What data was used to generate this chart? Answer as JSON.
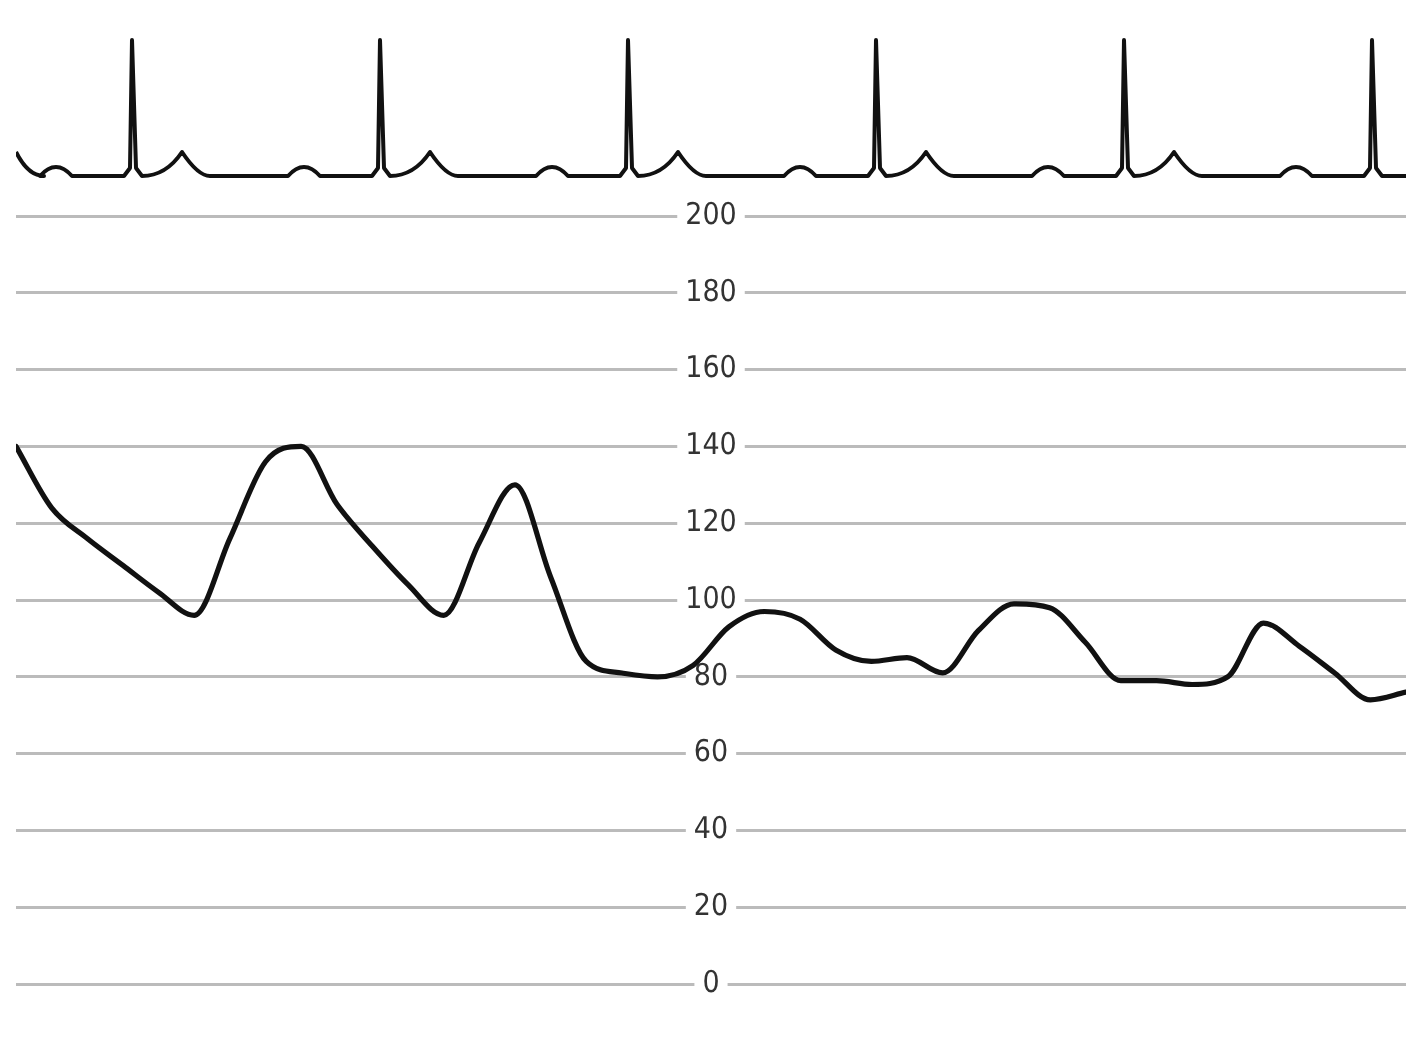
{
  "chart_data": {
    "type": "line",
    "categories": [
      null,
      null,
      null,
      null,
      null,
      null,
      null,
      null,
      null,
      null,
      null,
      null,
      null,
      null,
      null,
      null,
      null,
      null,
      null,
      null,
      null,
      null,
      null,
      null,
      null,
      null,
      null,
      null,
      null,
      null,
      null,
      null,
      null,
      null,
      null,
      null,
      null,
      null,
      null,
      null
    ],
    "series": [
      {
        "color": "#111111",
        "values": [
          140,
          124,
          116,
          109,
          102,
          96,
          116,
          136,
          140,
          125,
          114,
          104,
          96,
          115,
          130,
          106,
          84,
          81,
          80,
          83,
          93,
          97,
          95,
          87,
          84,
          85,
          81,
          92,
          99,
          98,
          89,
          79,
          79,
          78,
          80,
          94,
          88,
          81,
          74,
          76
        ]
      }
    ],
    "ylim": [
      0,
      200
    ],
    "yticks": [
      0,
      20,
      40,
      60,
      80,
      100,
      120,
      140,
      160,
      180,
      200
    ],
    "grid": "y",
    "tick_labels": "y",
    "marker": "none",
    "line_style": "solid",
    "legend": false
  }
}
